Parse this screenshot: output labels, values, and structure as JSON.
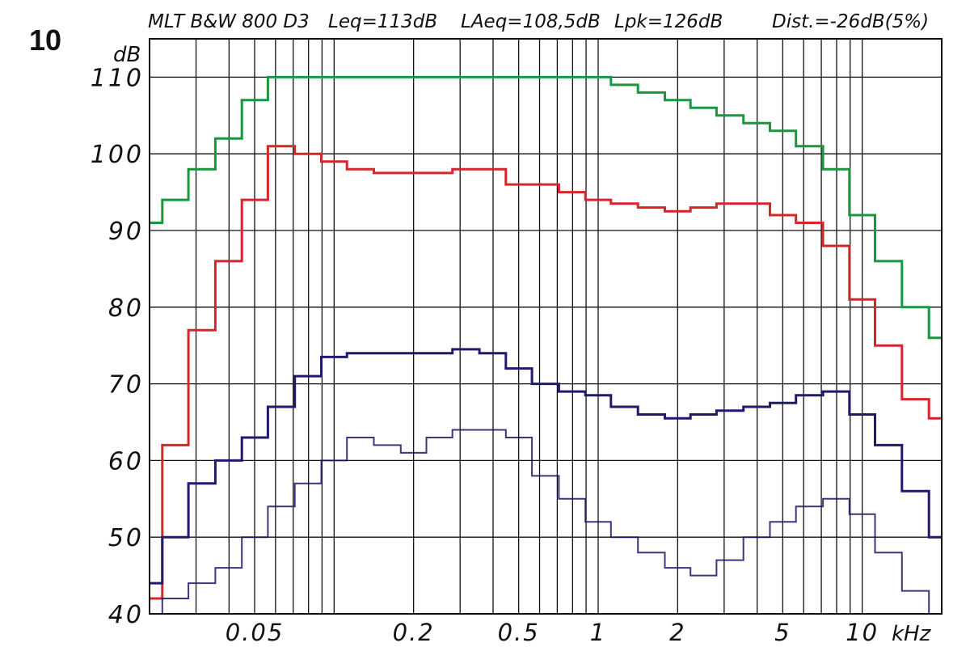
{
  "figure_number": "10",
  "chart_data": {
    "type": "line",
    "title": "MLT B&W 800 D3 Leq=113dB LAeq=108,5dB Lpk=126dB Dist.=-26dB(5%)",
    "title_parts": [
      "MLT B&W 800 D3",
      "Leq=113dB",
      "LAeq=108,5dB",
      "Lpk=126dB",
      "Dist.=-26dB(5%)"
    ],
    "ylabel": "dB",
    "xlabel": "kHz",
    "xscale": "log",
    "xlim": [
      0.02,
      20
    ],
    "ylim": [
      40,
      115
    ],
    "grid": true,
    "yticks": [
      40,
      50,
      60,
      70,
      80,
      90,
      100,
      110
    ],
    "ytick_labels": [
      "40",
      "50",
      "60",
      "70",
      "80",
      "90",
      "100",
      "110"
    ],
    "xticks": [
      0.05,
      0.2,
      0.5,
      1,
      2,
      5,
      10
    ],
    "xtick_labels": [
      "0.05",
      "0.2",
      "0.5",
      "1",
      "2",
      "5",
      "10"
    ],
    "band_centers_khz": [
      0.02,
      0.025,
      0.0315,
      0.04,
      0.05,
      0.063,
      0.08,
      0.1,
      0.125,
      0.16,
      0.2,
      0.25,
      0.315,
      0.4,
      0.5,
      0.63,
      0.8,
      1,
      1.25,
      1.6,
      2,
      2.5,
      3.15,
      4,
      5,
      6.3,
      8,
      10,
      12.5,
      16,
      20
    ],
    "series": [
      {
        "color": "#1a9641",
        "values": [
          91,
          94,
          98,
          102,
          107,
          110,
          110,
          110,
          110,
          110,
          110,
          110,
          110,
          110,
          110,
          110,
          110,
          110,
          109,
          108,
          107,
          106,
          105,
          104,
          103,
          101,
          98,
          92,
          86,
          80,
          76
        ]
      },
      {
        "color": "#d7262b",
        "values": [
          42,
          62,
          77,
          86,
          94,
          101,
          100,
          99,
          98,
          97.5,
          97.5,
          97.5,
          98,
          98,
          96,
          96,
          95,
          94,
          93.5,
          93,
          92.5,
          93,
          93.5,
          93.5,
          92,
          91,
          88,
          81,
          75,
          68,
          65.5
        ]
      },
      {
        "color": "#1f1a6e",
        "values": [
          44,
          50,
          57,
          60,
          63,
          67,
          71,
          73.5,
          74,
          74,
          74,
          74,
          74.5,
          74,
          72,
          70,
          69,
          68.5,
          67,
          66,
          65.5,
          66,
          66.5,
          67,
          67.5,
          68.5,
          69,
          66,
          62,
          56,
          50
        ]
      },
      {
        "color": "#1a1466",
        "values": [
          40,
          42,
          44,
          46,
          50,
          54,
          57,
          60,
          63,
          62,
          61,
          63,
          64,
          64,
          63,
          58,
          55,
          52,
          50,
          48,
          46,
          45,
          47,
          50,
          52,
          54,
          55,
          53,
          48,
          43,
          40
        ]
      }
    ]
  }
}
